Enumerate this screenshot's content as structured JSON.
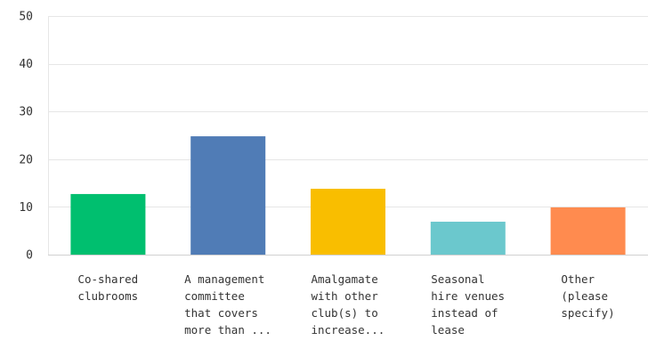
{
  "chart_data": {
    "type": "bar",
    "title": "",
    "xlabel": "",
    "ylabel": "",
    "ylim": [
      0,
      50
    ],
    "yticks": [
      0,
      10,
      20,
      30,
      40,
      50
    ],
    "grid": true,
    "legend": "none",
    "categories": [
      [
        "Co-shared",
        "clubrooms"
      ],
      [
        "A management",
        "committee",
        "that covers",
        "more than ..."
      ],
      [
        "Amalgamate",
        "with other",
        "club(s) to",
        "increase..."
      ],
      [
        "Seasonal",
        "hire venues",
        "instead of",
        "lease"
      ],
      [
        "Other",
        "(please",
        "specify)"
      ]
    ],
    "values": [
      12.7,
      24.8,
      13.8,
      6.9,
      9.9
    ],
    "colors": [
      "#00bf6f",
      "#507cb6",
      "#f9be00",
      "#6bc8cd",
      "#ff8b4f"
    ]
  }
}
